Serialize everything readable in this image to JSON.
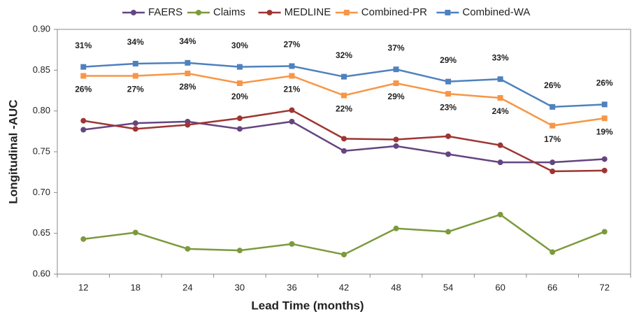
{
  "chart_data": {
    "type": "line",
    "x_label": "Lead Time (months)",
    "y_label": "Longitudinal -AUC",
    "categories": [
      "12",
      "18",
      "24",
      "30",
      "36",
      "42",
      "48",
      "54",
      "60",
      "66",
      "72"
    ],
    "ylim": [
      0.6,
      0.9
    ],
    "yticks": [
      {
        "value": 0.6,
        "label": "0.60"
      },
      {
        "value": 0.65,
        "label": "0.65"
      },
      {
        "value": 0.7,
        "label": "0.70"
      },
      {
        "value": 0.75,
        "label": "0.75"
      },
      {
        "value": 0.8,
        "label": "0.80"
      },
      {
        "value": 0.85,
        "label": "0.85"
      },
      {
        "value": 0.9,
        "label": "0.90"
      }
    ],
    "grid": false,
    "legend": "top",
    "series": [
      {
        "name": "FAERS",
        "color": "#65457f",
        "values": [
          0.777,
          0.785,
          0.787,
          0.778,
          0.787,
          0.751,
          0.757,
          0.747,
          0.737,
          0.737,
          0.741
        ]
      },
      {
        "name": "Claims",
        "color": "#7c9a3c",
        "values": [
          0.643,
          0.651,
          0.631,
          0.629,
          0.637,
          0.624,
          0.656,
          0.652,
          0.673,
          0.627,
          0.652
        ]
      },
      {
        "name": "MEDLINE",
        "color": "#9e3532",
        "values": [
          0.788,
          0.778,
          0.783,
          0.791,
          0.801,
          0.766,
          0.765,
          0.769,
          0.758,
          0.726,
          0.727
        ]
      },
      {
        "name": "Combined-PR",
        "color": "#f79646",
        "values": [
          0.843,
          0.843,
          0.846,
          0.834,
          0.843,
          0.819,
          0.834,
          0.821,
          0.816,
          0.782,
          0.791
        ],
        "annotations": [
          "26%",
          "27%",
          "28%",
          "20%",
          "21%",
          "22%",
          "29%",
          "23%",
          "24%",
          "17%",
          "19%"
        ],
        "annotation_side": "below"
      },
      {
        "name": "Combined-WA",
        "color": "#4f81bd",
        "values": [
          0.854,
          0.858,
          0.859,
          0.854,
          0.855,
          0.842,
          0.851,
          0.836,
          0.839,
          0.805,
          0.808
        ],
        "annotations": [
          "31%",
          "34%",
          "34%",
          "30%",
          "27%",
          "32%",
          "37%",
          "29%",
          "33%",
          "26%",
          "26%"
        ],
        "annotation_side": "above"
      }
    ]
  }
}
